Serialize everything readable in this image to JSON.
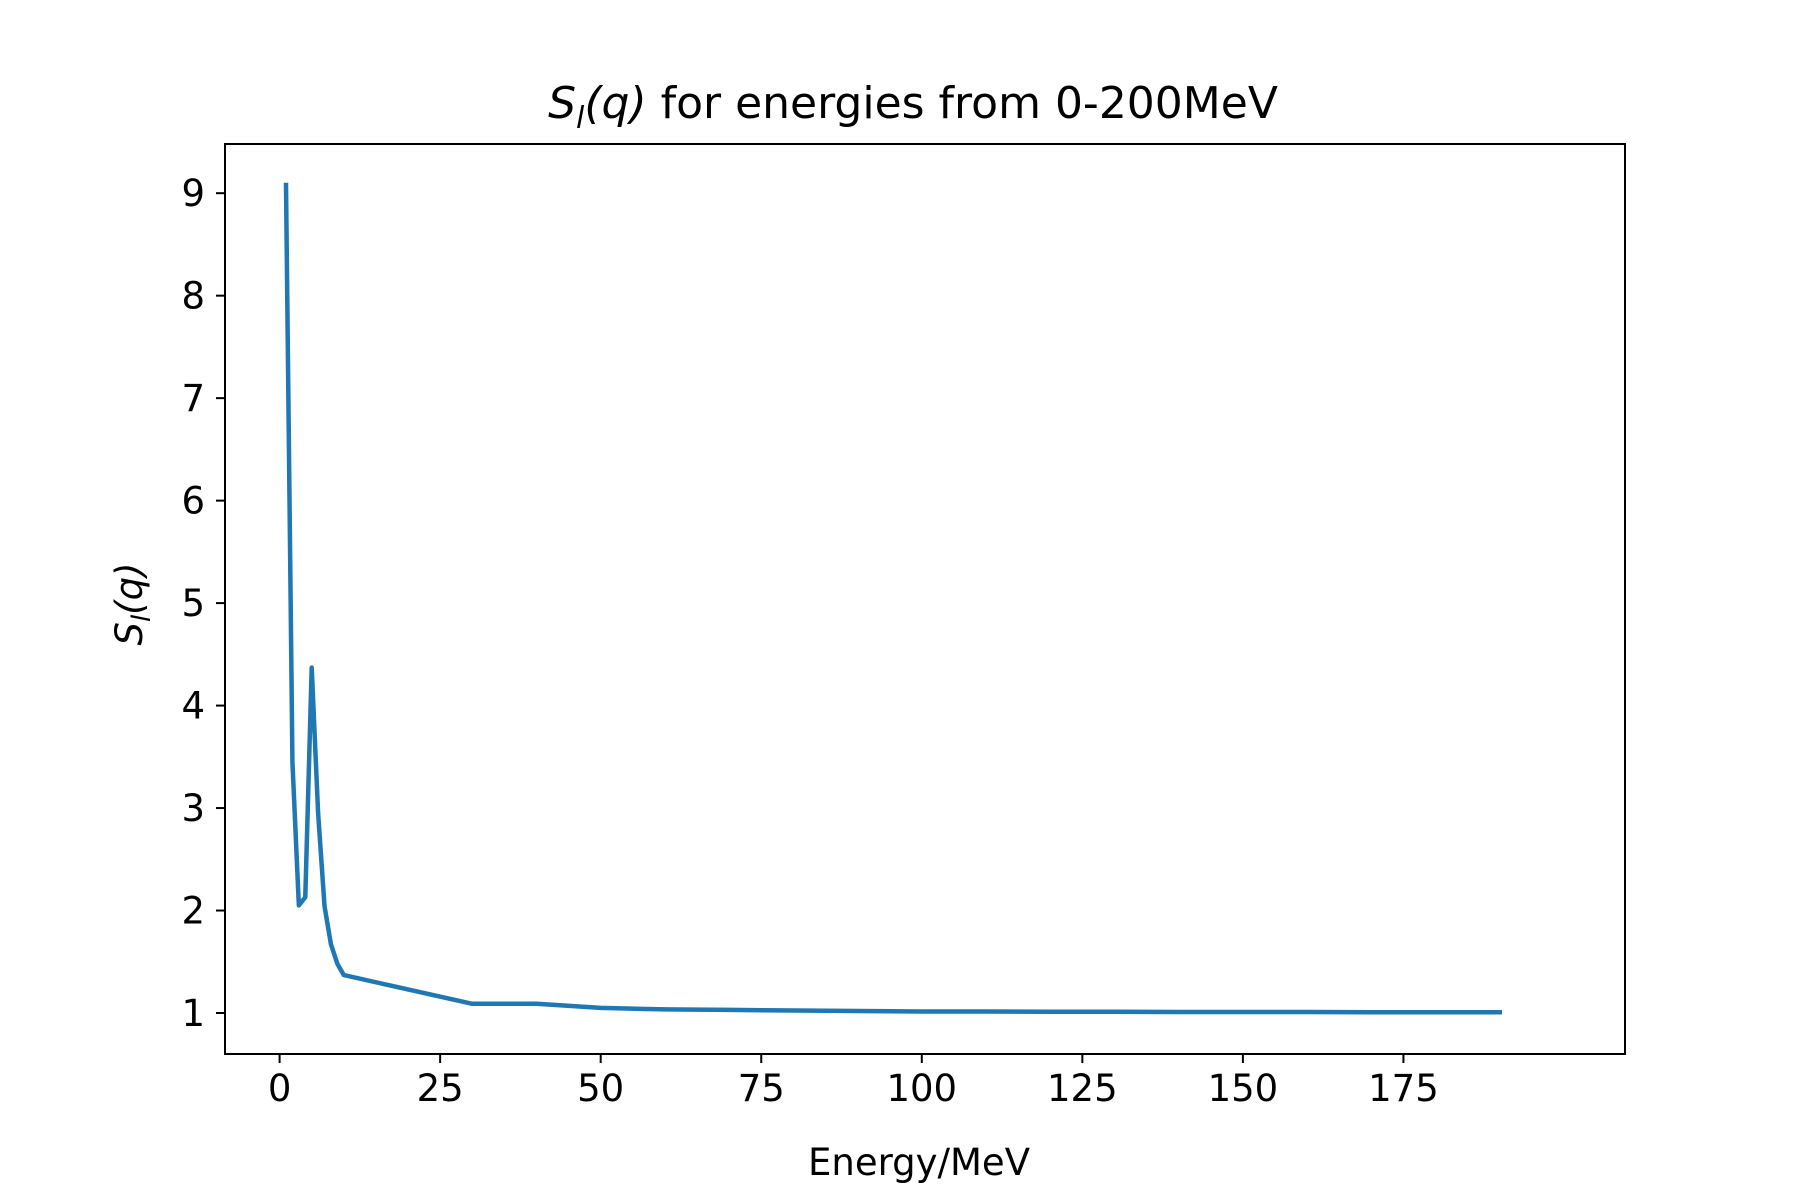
{
  "chart_data": {
    "type": "line",
    "title": {
      "main": "S",
      "main_sub": "l",
      "main_rest": "(q)",
      "suffix": " for energies from 0-200MeV"
    },
    "xlabel": "Energy/MeV",
    "ylabel": {
      "main": "S",
      "sub": "l",
      "rest": "(q)"
    },
    "xlim": [
      -8.5,
      209.5
    ],
    "ylim": [
      0.6,
      9.48
    ],
    "x_ticks": [
      0,
      25,
      50,
      75,
      100,
      125,
      150,
      175
    ],
    "x_tick_labels": [
      "0",
      "25",
      "50",
      "75",
      "100",
      "125",
      "150",
      "175"
    ],
    "y_ticks": [
      1,
      2,
      3,
      4,
      5,
      6,
      7,
      8,
      9
    ],
    "y_tick_labels": [
      "1",
      "2",
      "3",
      "4",
      "5",
      "6",
      "7",
      "8",
      "9"
    ],
    "grid": false,
    "series": [
      {
        "color": "#1f77b4",
        "x": [
          1,
          2,
          3,
          4,
          5,
          6,
          7,
          8,
          9,
          10,
          20,
          30,
          40,
          50,
          60,
          70,
          80,
          90,
          100,
          110,
          120,
          130,
          140,
          150,
          160,
          170,
          180,
          190
        ],
        "y": [
          9.08,
          3.45,
          2.05,
          2.13,
          4.37,
          2.95,
          2.04,
          1.67,
          1.48,
          1.37,
          1.23,
          1.09,
          1.09,
          1.05,
          1.035,
          1.03,
          1.025,
          1.02,
          1.015,
          1.015,
          1.012,
          1.012,
          1.01,
          1.01,
          1.01,
          1.008,
          1.008,
          1.008
        ]
      }
    ]
  }
}
